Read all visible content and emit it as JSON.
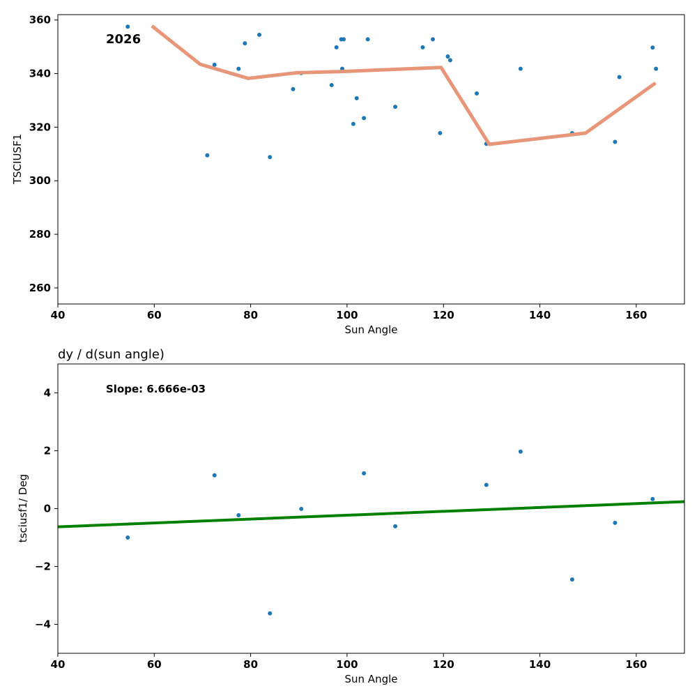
{
  "chart_data": [
    {
      "type": "scatter",
      "annotation": "2026",
      "xlabel": "Sun Angle",
      "ylabel": "TSCIUSF1",
      "xlim": [
        40,
        170
      ],
      "ylim": [
        254,
        362
      ],
      "xticks": [
        40,
        60,
        80,
        100,
        120,
        140,
        160
      ],
      "yticks": [
        260,
        280,
        300,
        320,
        340,
        360
      ],
      "colors": {
        "points": "#1f77b4",
        "line": "#e8967a"
      },
      "points": [
        [
          54.5,
          357.5
        ],
        [
          71.0,
          309.5
        ],
        [
          72.5,
          343.3
        ],
        [
          77.5,
          341.8
        ],
        [
          78.8,
          351.3
        ],
        [
          81.8,
          354.5
        ],
        [
          84.0,
          308.8
        ],
        [
          88.8,
          334.2
        ],
        [
          90.5,
          340.2
        ],
        [
          96.8,
          335.7
        ],
        [
          97.8,
          349.8
        ],
        [
          98.8,
          352.8
        ],
        [
          99.0,
          341.8
        ],
        [
          99.3,
          352.8
        ],
        [
          101.3,
          321.2
        ],
        [
          102.0,
          330.8
        ],
        [
          103.5,
          323.4
        ],
        [
          104.3,
          352.8
        ],
        [
          110.0,
          327.6
        ],
        [
          115.7,
          349.8
        ],
        [
          117.8,
          352.8
        ],
        [
          119.3,
          317.8
        ],
        [
          120.9,
          346.4
        ],
        [
          121.4,
          345.0
        ],
        [
          126.9,
          332.6
        ],
        [
          128.9,
          313.8
        ],
        [
          136.0,
          341.8
        ],
        [
          146.7,
          317.8
        ],
        [
          155.6,
          314.5
        ],
        [
          156.5,
          338.7
        ],
        [
          163.4,
          349.7
        ],
        [
          164.1,
          341.8
        ]
      ],
      "trend_line": {
        "x": [
          59.5,
          69.5,
          79.5,
          89.5,
          99.5,
          119.5,
          129.5,
          149.5,
          164.0
        ],
        "y": [
          357.8,
          343.5,
          338.2,
          340.3,
          340.8,
          342.3,
          313.6,
          317.8,
          336.5
        ]
      }
    },
    {
      "type": "scatter",
      "title": "dy / d(sun angle)",
      "annotation": "Slope: 6.666e-03",
      "xlabel": "Sun Angle",
      "ylabel": "tsciusf1/ Deg",
      "xlim": [
        40,
        170
      ],
      "ylim": [
        -5,
        5
      ],
      "xticks": [
        40,
        60,
        80,
        100,
        120,
        140,
        160
      ],
      "yticks": [
        -4,
        -2,
        0,
        2,
        4
      ],
      "ytick_labels": [
        "−4",
        "−2",
        "0",
        "2",
        "4"
      ],
      "colors": {
        "points": "#1f77b4",
        "line": "#008000"
      },
      "points": [
        [
          54.5,
          -1.0
        ],
        [
          72.5,
          1.15
        ],
        [
          77.5,
          -0.23
        ],
        [
          84.0,
          -3.62
        ],
        [
          90.5,
          -0.01
        ],
        [
          103.5,
          1.22
        ],
        [
          110.0,
          -0.61
        ],
        [
          128.9,
          0.82
        ],
        [
          136.0,
          1.97
        ],
        [
          146.7,
          -2.45
        ],
        [
          155.6,
          -0.49
        ],
        [
          163.4,
          0.33
        ]
      ],
      "fit_line": {
        "x": [
          40,
          170
        ],
        "y": [
          -0.63,
          0.24
        ]
      }
    }
  ]
}
